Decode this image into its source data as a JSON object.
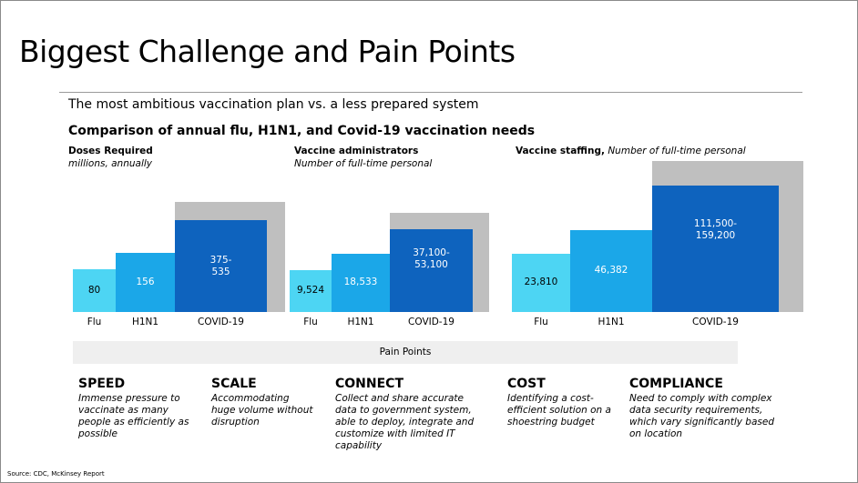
{
  "title": "Biggest Challenge and Pain Points",
  "subtitle": "The most ambitious vaccination plan vs. a less prepared system",
  "heading": "Comparison of annual flu, H1N1, and Covid-19 vaccination needs",
  "chart_data": [
    {
      "type": "area",
      "title": "Doses Required",
      "subtitle": "millions, annually",
      "categories": [
        "Flu",
        "H1N1",
        "COVID-19"
      ],
      "labels": [
        "80",
        "156",
        "375-\n535"
      ],
      "values": [
        80,
        156,
        375
      ],
      "range_max": 535
    },
    {
      "type": "area",
      "title": "Vaccine administrators",
      "subtitle": "Number of full-time personal",
      "categories": [
        "Flu",
        "H1N1",
        "COVID-19"
      ],
      "labels": [
        "9,524",
        "18,533",
        "37,100-\n53,100"
      ],
      "values": [
        9524,
        18533,
        37100
      ],
      "range_max": 53100
    },
    {
      "type": "area",
      "title": "Vaccine staffing,",
      "subtitle": "Number of full-time personal",
      "categories": [
        "Flu",
        "H1N1",
        "COVID-19"
      ],
      "labels": [
        "23,810",
        "46,382",
        "111,500-\n159,200"
      ],
      "values": [
        23810,
        46382,
        111500
      ],
      "range_max": 159200
    }
  ],
  "banner": "Pain Points",
  "pain_points": [
    {
      "title": "SPEED",
      "desc": "Immense pressure to vaccinate as many people as efficiently as possible"
    },
    {
      "title": "SCALE",
      "desc": "Accommodating huge volume without disruption"
    },
    {
      "title": "CONNECT",
      "desc": "Collect and share accurate data to government system, able to deploy, integrate and customize with limited IT capability"
    },
    {
      "title": "COST",
      "desc": "Identifying a cost-efficient solution on a shoestring budget"
    },
    {
      "title": "COMPLIANCE",
      "desc": "Need to comply with complex data security requirements, which vary significantly based on location"
    }
  ],
  "source": "Source: CDC, McKinsey Report",
  "colors": {
    "flu": "#4dd5f3",
    "h1n1": "#1ba7e8",
    "covid": "#0e63be",
    "range": "#bfbfbf"
  }
}
